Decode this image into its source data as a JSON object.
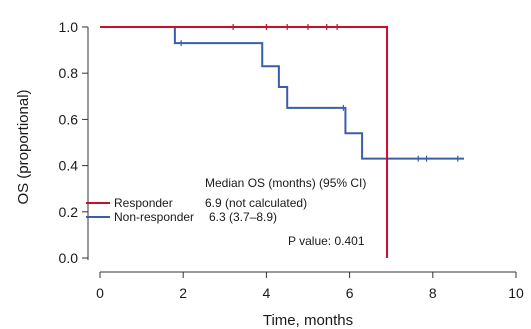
{
  "chart_data": {
    "type": "line",
    "step": true,
    "xlabel": "Time, months",
    "ylabel": "OS (proportional)",
    "xlim": [
      0,
      10
    ],
    "ylim": [
      0,
      1.0
    ],
    "xticks": [
      "0",
      "2",
      "4",
      "6",
      "8",
      "10"
    ],
    "yticks": [
      "0.0",
      "0.2",
      "0.4",
      "0.6",
      "0.8",
      "1.0"
    ],
    "grid": false,
    "legend_position": "bottom-left",
    "series": [
      {
        "name": "Responder",
        "color": "#c8102e",
        "steps": [
          [
            0,
            1.0
          ],
          [
            6.9,
            1.0
          ],
          [
            6.9,
            0.0
          ]
        ],
        "censored": [
          [
            3.2,
            1.0
          ],
          [
            4.0,
            1.0
          ],
          [
            4.5,
            1.0
          ],
          [
            5.0,
            1.0
          ],
          [
            5.45,
            1.0
          ],
          [
            5.7,
            1.0
          ]
        ]
      },
      {
        "name": "Non-responder",
        "color": "#3a5ea8",
        "steps": [
          [
            0,
            1.0
          ],
          [
            1.8,
            1.0
          ],
          [
            1.8,
            0.93
          ],
          [
            3.9,
            0.93
          ],
          [
            3.9,
            0.83
          ],
          [
            4.3,
            0.83
          ],
          [
            4.3,
            0.74
          ],
          [
            4.5,
            0.74
          ],
          [
            4.5,
            0.65
          ],
          [
            5.9,
            0.65
          ],
          [
            5.9,
            0.54
          ],
          [
            6.3,
            0.54
          ],
          [
            6.3,
            0.43
          ],
          [
            8.75,
            0.43
          ]
        ],
        "censored": [
          [
            1.95,
            0.93
          ],
          [
            5.85,
            0.65
          ],
          [
            7.65,
            0.43
          ],
          [
            7.85,
            0.43
          ],
          [
            8.6,
            0.43
          ]
        ]
      }
    ],
    "annotations": {
      "median_header": "Median OS (months) (95% CI)",
      "responder_median": "6.9 (not calculated)",
      "nonresponder_median": "6.3 (3.7–8.9)",
      "p_value": "P value: 0.401"
    }
  }
}
